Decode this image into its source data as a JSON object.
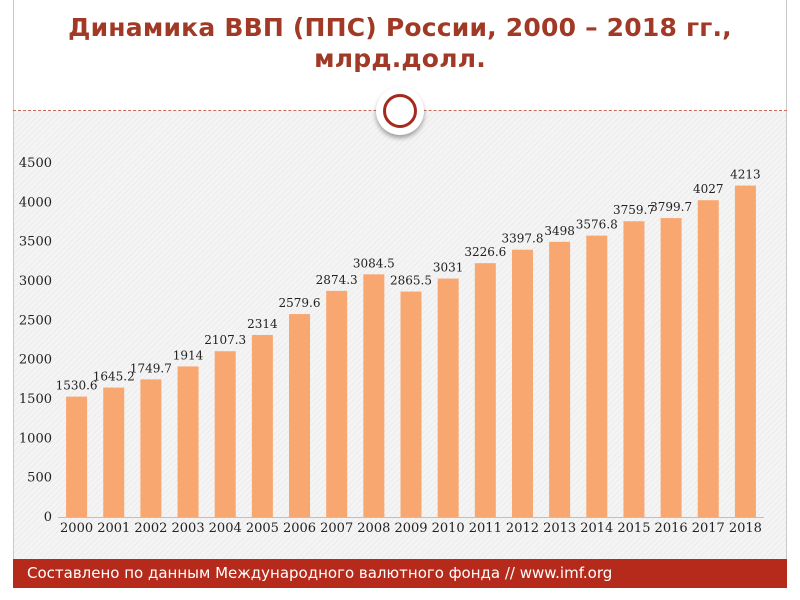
{
  "slide": {
    "title_line1": "Динамика ВВП (ППС) России, 2000 – 2018 гг.,",
    "title_line2": "млрд.долл.",
    "footer": "Составлено по данным Международного валютного фонда // www.imf.org"
  },
  "colors": {
    "bar": "#f8a770",
    "title": "#a03a26",
    "footer_bg": "#b52a1b"
  },
  "chart_data": {
    "type": "bar",
    "title": "Динамика ВВП (ППС) России, 2000 – 2018 гг., млрд.долл.",
    "categories": [
      "2000",
      "2001",
      "2002",
      "2003",
      "2004",
      "2005",
      "2006",
      "2007",
      "2008",
      "2009",
      "2010",
      "2011",
      "2012",
      "2013",
      "2014",
      "2015",
      "2016",
      "2017",
      "2018"
    ],
    "values": [
      1530.6,
      1645.2,
      1749.7,
      1914,
      2107.3,
      2314,
      2579.6,
      2874.3,
      3084.5,
      2865.5,
      3031,
      3226.6,
      3397.8,
      3498,
      3576.8,
      3759.7,
      3799.7,
      4027,
      4213
    ],
    "value_labels": [
      "1530.6",
      "1645.2",
      "1749.7",
      "1914",
      "2107.3",
      "2314",
      "2579.6",
      "2874.3",
      "3084.5",
      "2865.5",
      "3031",
      "3226.6",
      "3397.8",
      "3498",
      "3576.8",
      "3759.7",
      "3799.7",
      "4027",
      "4213"
    ],
    "y_ticks": [
      "0",
      "500",
      "1000",
      "1500",
      "2000",
      "2500",
      "3000",
      "3500",
      "4000",
      "4500"
    ],
    "ylim": [
      0,
      4500
    ],
    "xlabel": "",
    "ylabel": "",
    "grid": false,
    "legend": "none"
  }
}
